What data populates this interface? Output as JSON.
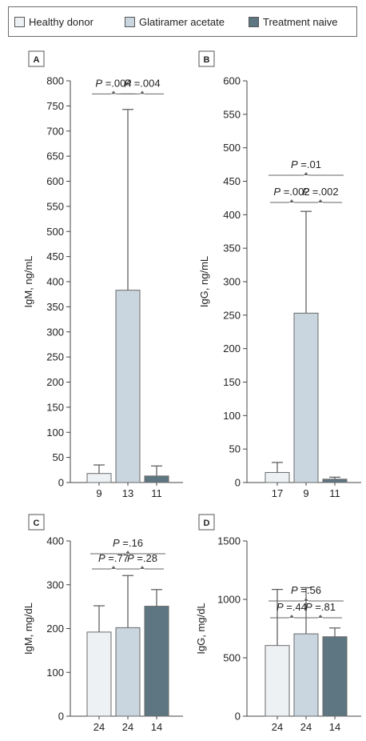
{
  "legend": [
    {
      "label": "Healthy donor",
      "color": "#eef1f4"
    },
    {
      "label": "Glatiramer acetate",
      "color": "#c9d6df"
    },
    {
      "label": "Treatment naive",
      "color": "#5e7682"
    }
  ],
  "chart_data": [
    {
      "panel": "A",
      "type": "bar",
      "ylabel": "IgM, ng/mL",
      "ylim": [
        0,
        800
      ],
      "yticks": [
        0,
        50,
        100,
        150,
        200,
        250,
        300,
        350,
        400,
        450,
        500,
        550,
        600,
        650,
        700,
        750,
        800
      ],
      "categories": [
        "9",
        "13",
        "11"
      ],
      "groups": [
        "Healthy donor",
        "Glatiramer acetate",
        "Treatment naive"
      ],
      "values": [
        18,
        383,
        13
      ],
      "error_upper": [
        35,
        743,
        33
      ],
      "comparisons": [
        {
          "from": 0,
          "to": 1,
          "label": "P =.004",
          "level": 1
        },
        {
          "from": 1,
          "to": 2,
          "label": "P =.004",
          "level": 1
        }
      ]
    },
    {
      "panel": "B",
      "type": "bar",
      "ylabel": "IgG, ng/mL",
      "ylim": [
        0,
        600
      ],
      "yticks": [
        0,
        50,
        100,
        150,
        200,
        250,
        300,
        350,
        400,
        450,
        500,
        550,
        600
      ],
      "categories": [
        "17",
        "9",
        "11"
      ],
      "groups": [
        "Healthy donor",
        "Glatiramer acetate",
        "Treatment naive"
      ],
      "values": [
        15,
        253,
        5
      ],
      "error_upper": [
        30,
        405,
        8
      ],
      "comparisons": [
        {
          "from": 0,
          "to": 1,
          "label": "P =.002",
          "level": 1
        },
        {
          "from": 1,
          "to": 2,
          "label": "P =.002",
          "level": 1
        },
        {
          "from": 0,
          "to": 2,
          "label": "P =.01",
          "level": 2
        }
      ]
    },
    {
      "panel": "C",
      "type": "bar",
      "ylabel": "IgM, mg/dL",
      "ylim": [
        0,
        400
      ],
      "yticks": [
        0,
        100,
        200,
        300,
        400
      ],
      "categories": [
        "24",
        "24",
        "14"
      ],
      "groups": [
        "Healthy donor",
        "Glatiramer acetate",
        "Treatment naive"
      ],
      "values": [
        192,
        202,
        251
      ],
      "error_upper": [
        252,
        321,
        289
      ],
      "comparisons": [
        {
          "from": 0,
          "to": 1,
          "label": "P =.77",
          "level": 1
        },
        {
          "from": 1,
          "to": 2,
          "label": "P =.28",
          "level": 1
        },
        {
          "from": 0,
          "to": 2,
          "label": "P =.16",
          "level": 2
        }
      ]
    },
    {
      "panel": "D",
      "type": "bar",
      "ylabel": "IgG, mg/dL",
      "ylim": [
        0,
        1500
      ],
      "yticks": [
        0,
        500,
        1000,
        1500
      ],
      "categories": [
        "24",
        "24",
        "14"
      ],
      "groups": [
        "Healthy donor",
        "Glatiramer acetate",
        "Treatment naive"
      ],
      "values": [
        605,
        705,
        680
      ],
      "error_upper": [
        1085,
        1100,
        755
      ],
      "comparisons": [
        {
          "from": 0,
          "to": 1,
          "label": "P =.44",
          "level": 1
        },
        {
          "from": 1,
          "to": 2,
          "label": "P =.81",
          "level": 1
        },
        {
          "from": 0,
          "to": 2,
          "label": "P =.56",
          "level": 2
        }
      ]
    }
  ]
}
